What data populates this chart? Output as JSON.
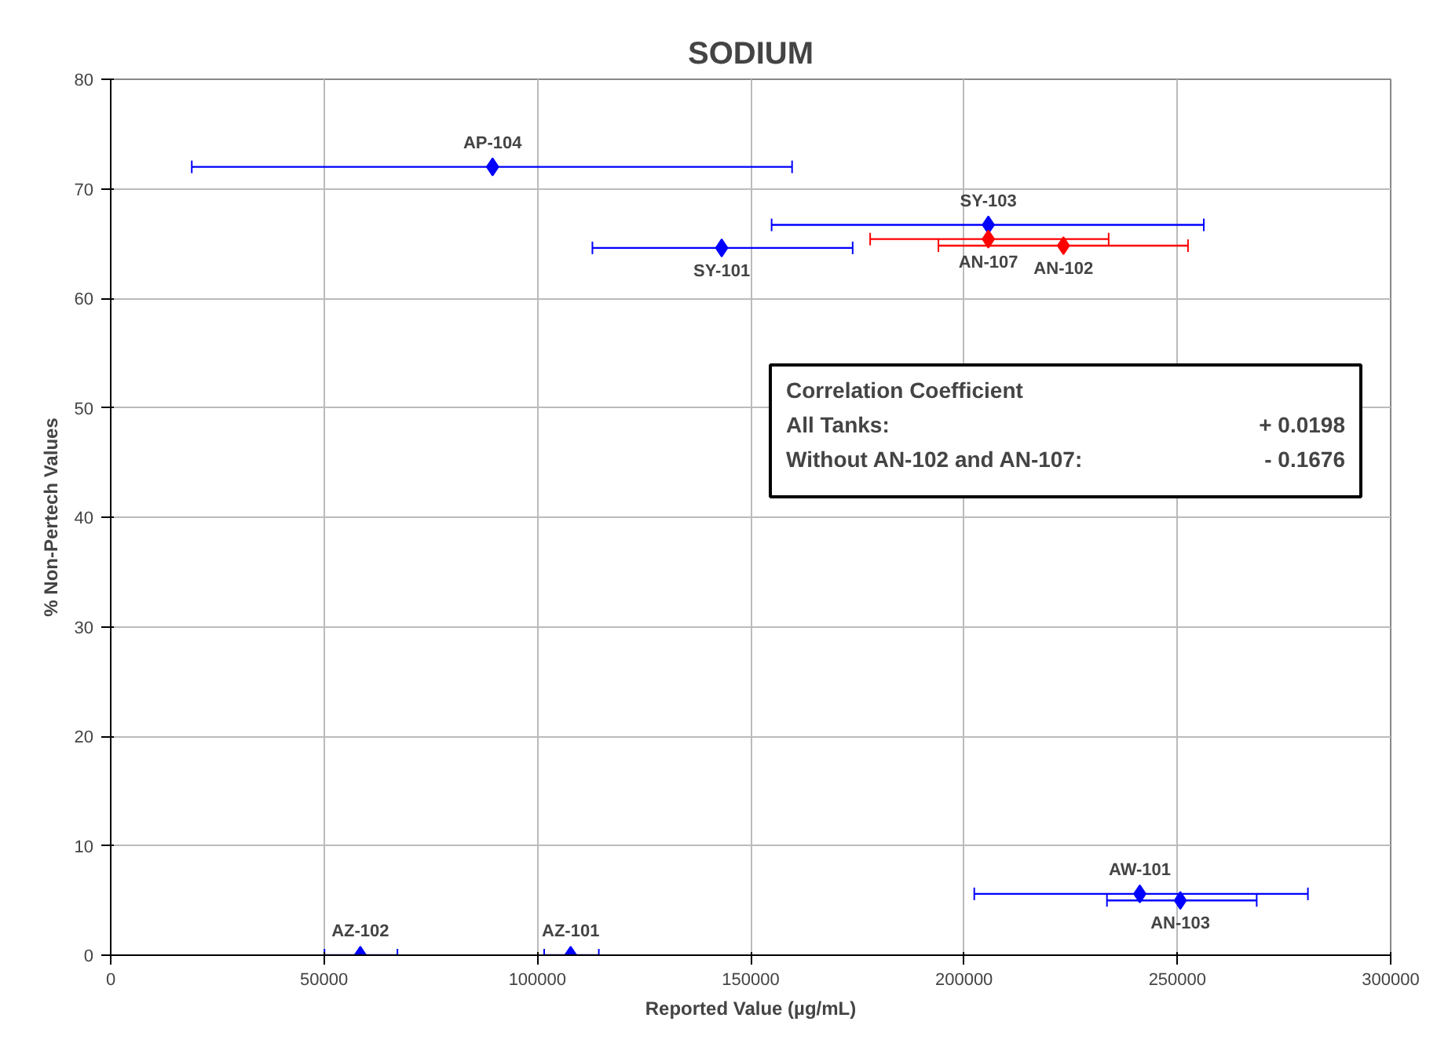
{
  "chart_data": {
    "type": "scatter",
    "title": "SODIUM",
    "xlabel": "Reported Value (µg/mL)",
    "ylabel": "% Non-Pertech Values",
    "xlim": [
      0,
      300000
    ],
    "xticks": [
      0,
      50000,
      100000,
      150000,
      200000,
      250000,
      300000
    ],
    "ylim": [
      0,
      80
    ],
    "yticks": [
      0,
      10,
      20,
      30,
      40,
      50,
      60,
      70,
      80
    ],
    "grid": true,
    "marker": "diamond",
    "series": [
      {
        "color": "#0000ff",
        "x": [
          89500,
          143200,
          205700,
          241200,
          250700,
          58500,
          107800
        ],
        "values": [
          72,
          64.6,
          66.7,
          5.6,
          5.0,
          0,
          0
        ],
        "xerrors": [
          [
            19000,
            159700
          ],
          [
            112900,
            173900
          ],
          [
            154900,
            256200
          ],
          [
            202400,
            280600
          ],
          [
            233500,
            268600
          ],
          [
            50100,
            67200
          ],
          [
            101600,
            114400
          ]
        ]
      },
      {
        "color": "#ff0000",
        "x": [
          205700,
          223300
        ],
        "values": [
          65.4,
          64.8
        ],
        "xerrors": [
          [
            178000,
            233900
          ],
          [
            194000,
            252500
          ]
        ]
      }
    ],
    "annotations": [
      {
        "text": "AP-104",
        "x": 89500,
        "y": 72
      },
      {
        "text": "SY-101",
        "x": 143200,
        "y": 64.6
      },
      {
        "text": "SY-103",
        "x": 205700,
        "y": 66.7
      },
      {
        "text": "AN-107",
        "x": 205700,
        "y": 65.4
      },
      {
        "text": "AN-102",
        "x": 223300,
        "y": 64.8
      },
      {
        "text": "AW-101",
        "x": 241200,
        "y": 5.6
      },
      {
        "text": "AN-103",
        "x": 250700,
        "y": 5.0
      },
      {
        "text": "AZ-102",
        "x": 58500,
        "y": 0
      },
      {
        "text": "AZ-101",
        "x": 107800,
        "y": 0
      },
      "Correlation Coefficient",
      "All Tanks:",
      "+ 0.0198",
      "Without AN-102 and AN-107:",
      "- 0.1676"
    ]
  }
}
